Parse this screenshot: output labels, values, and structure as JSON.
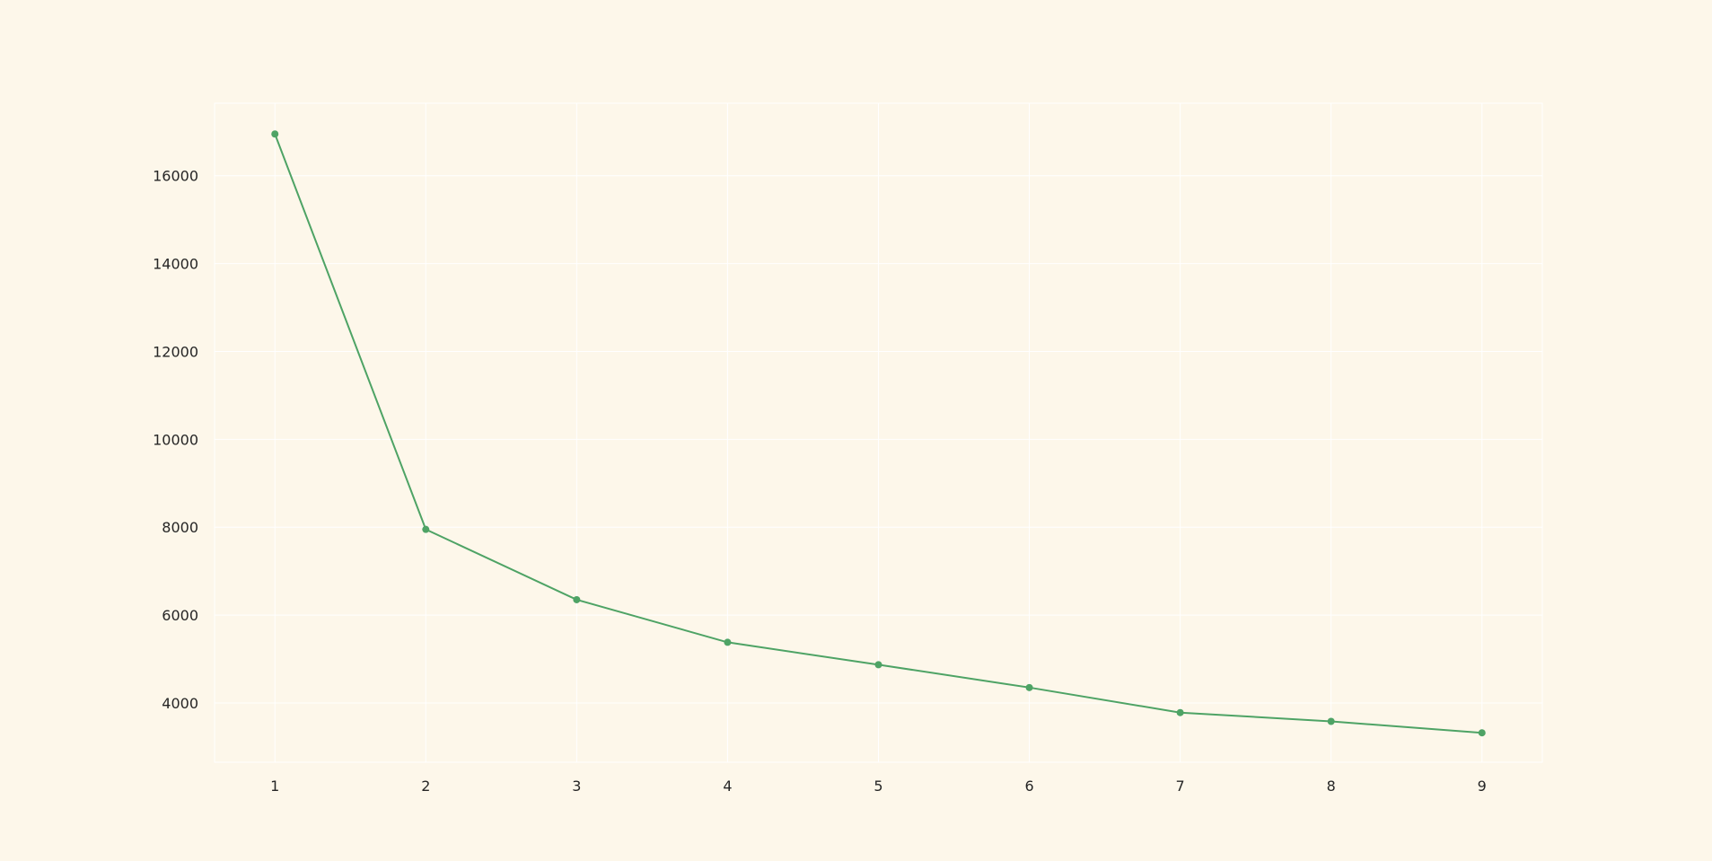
{
  "chart_data": {
    "type": "line",
    "title": "",
    "xlabel": "",
    "ylabel": "",
    "x": [
      1,
      2,
      3,
      4,
      5,
      6,
      7,
      8,
      9
    ],
    "series": [
      {
        "values": [
          16950,
          7950,
          6350,
          5380,
          4870,
          4350,
          3780,
          3580,
          3320
        ]
      }
    ],
    "xlim": [
      0.6,
      9.4
    ],
    "ylim": [
      2650,
      17650
    ],
    "xticks": [
      1,
      2,
      3,
      4,
      5,
      6,
      7,
      8,
      9
    ],
    "yticks": [
      4000,
      6000,
      8000,
      10000,
      12000,
      14000,
      16000
    ],
    "grid": true,
    "legend": "none",
    "colors": {
      "background": "#fdf7ea",
      "plot_background": "#fdf7ea",
      "grid": "#ffffff",
      "line": "#4ea365",
      "tick_text": "#262626"
    }
  }
}
